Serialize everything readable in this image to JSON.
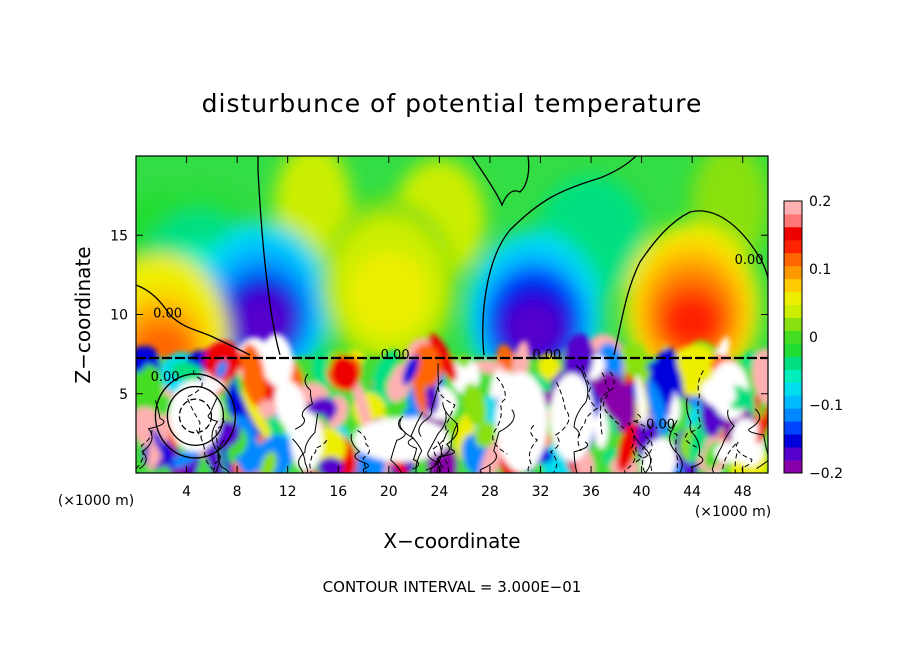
{
  "chart_data": {
    "type": "heatmap",
    "title": "disturbunce of potential temperature",
    "xlabel": "X−coordinate",
    "ylabel": "Z−coordinate",
    "x_unit": "(×1000 m)",
    "y_unit": "(×1000 m)",
    "xlim": [
      0,
      50
    ],
    "ylim": [
      0,
      20
    ],
    "x_ticks": [
      {
        "value": 4,
        "label": "4"
      },
      {
        "value": 8,
        "label": "8"
      },
      {
        "value": 12,
        "label": "12"
      },
      {
        "value": 16,
        "label": "16"
      },
      {
        "value": 20,
        "label": "20"
      },
      {
        "value": 24,
        "label": "24"
      },
      {
        "value": 28,
        "label": "28"
      },
      {
        "value": 32,
        "label": "32"
      },
      {
        "value": 36,
        "label": "36"
      },
      {
        "value": 40,
        "label": "40"
      },
      {
        "value": 44,
        "label": "44"
      },
      {
        "value": 48,
        "label": "48"
      }
    ],
    "y_ticks": [
      {
        "value": 5,
        "label": "5"
      },
      {
        "value": 10,
        "label": "10"
      },
      {
        "value": 15,
        "label": "15"
      }
    ],
    "colorbar": {
      "range": [
        -0.2,
        0.2
      ],
      "ticks": [
        {
          "value": 0.2,
          "label": "0.2"
        },
        {
          "value": 0.1,
          "label": "0.1"
        },
        {
          "value": 0,
          "label": "0"
        },
        {
          "value": -0.1,
          "label": "−0.1"
        },
        {
          "value": -0.2,
          "label": "−0.2"
        }
      ],
      "colors": [
        "#8800aa",
        "#5500cc",
        "#0000dd",
        "#0044ff",
        "#0088ff",
        "#00bbff",
        "#00ddee",
        "#00eebb",
        "#00e080",
        "#22dd33",
        "#44dd22",
        "#88e010",
        "#ccee00",
        "#eeee00",
        "#ffcc00",
        "#ff9900",
        "#ff6600",
        "#ff2200",
        "#ee0000",
        "#ff7777",
        "#ffb0b0"
      ]
    },
    "contour_interval_text": "CONTOUR INTERVAL = 3.000E−01",
    "contour_labels": [
      {
        "x": 2.5,
        "y": 9.8,
        "label": "0.00"
      },
      {
        "x": 20.5,
        "y": 7.2,
        "label": "0.00"
      },
      {
        "x": 32.5,
        "y": 7.2,
        "label": "0.00"
      },
      {
        "x": 48.5,
        "y": 13.2,
        "label": "0.00"
      },
      {
        "x": 2.3,
        "y": 5.8,
        "label": "0.00"
      },
      {
        "x": 41.5,
        "y": 2.8,
        "label": "0.00"
      }
    ],
    "upper_anomalies": [
      {
        "x": 5,
        "z": 12.5,
        "value": -0.06
      },
      {
        "x": 10,
        "z": 10.5,
        "value": -0.17
      },
      {
        "x": 20,
        "z": 12.0,
        "value": 0.06
      },
      {
        "x": 31.5,
        "z": 10.0,
        "value": -0.18
      },
      {
        "x": 44,
        "z": 10.5,
        "value": 0.13
      },
      {
        "x": 2,
        "z": 8.5,
        "value": 0.12
      }
    ],
    "interface_z": 7.3,
    "grid": false
  }
}
